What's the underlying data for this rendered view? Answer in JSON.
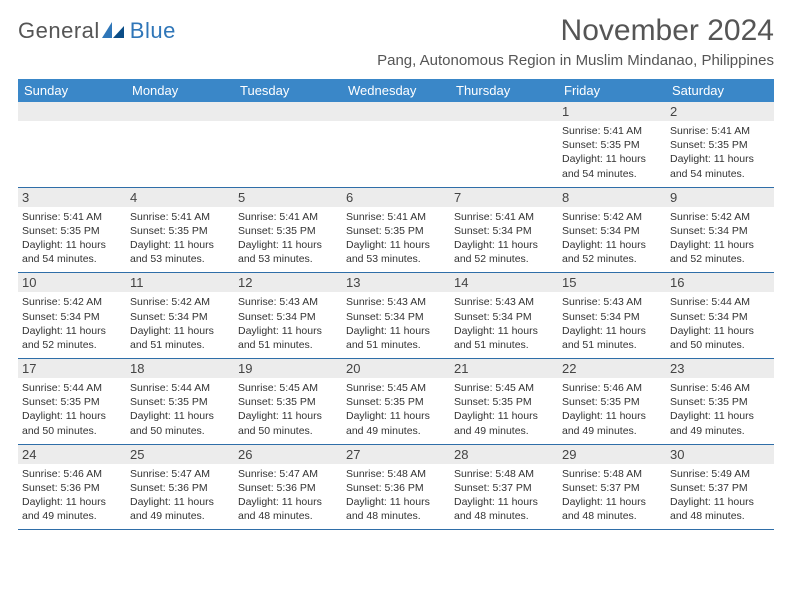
{
  "logo": {
    "text1": "General",
    "text2": "Blue"
  },
  "title": "November 2024",
  "location": "Pang, Autonomous Region in Muslim Mindanao, Philippines",
  "colors": {
    "header_bg": "#3a87c8",
    "header_text": "#ffffff",
    "daynum_bg": "#ececec",
    "border": "#2f6ea8",
    "text": "#333333",
    "title": "#555555"
  },
  "weekdays": [
    "Sunday",
    "Monday",
    "Tuesday",
    "Wednesday",
    "Thursday",
    "Friday",
    "Saturday"
  ],
  "weeks": [
    [
      {
        "n": "",
        "sr": "",
        "ss": "",
        "dl": ""
      },
      {
        "n": "",
        "sr": "",
        "ss": "",
        "dl": ""
      },
      {
        "n": "",
        "sr": "",
        "ss": "",
        "dl": ""
      },
      {
        "n": "",
        "sr": "",
        "ss": "",
        "dl": ""
      },
      {
        "n": "",
        "sr": "",
        "ss": "",
        "dl": ""
      },
      {
        "n": "1",
        "sr": "Sunrise: 5:41 AM",
        "ss": "Sunset: 5:35 PM",
        "dl": "Daylight: 11 hours and 54 minutes."
      },
      {
        "n": "2",
        "sr": "Sunrise: 5:41 AM",
        "ss": "Sunset: 5:35 PM",
        "dl": "Daylight: 11 hours and 54 minutes."
      }
    ],
    [
      {
        "n": "3",
        "sr": "Sunrise: 5:41 AM",
        "ss": "Sunset: 5:35 PM",
        "dl": "Daylight: 11 hours and 54 minutes."
      },
      {
        "n": "4",
        "sr": "Sunrise: 5:41 AM",
        "ss": "Sunset: 5:35 PM",
        "dl": "Daylight: 11 hours and 53 minutes."
      },
      {
        "n": "5",
        "sr": "Sunrise: 5:41 AM",
        "ss": "Sunset: 5:35 PM",
        "dl": "Daylight: 11 hours and 53 minutes."
      },
      {
        "n": "6",
        "sr": "Sunrise: 5:41 AM",
        "ss": "Sunset: 5:35 PM",
        "dl": "Daylight: 11 hours and 53 minutes."
      },
      {
        "n": "7",
        "sr": "Sunrise: 5:41 AM",
        "ss": "Sunset: 5:34 PM",
        "dl": "Daylight: 11 hours and 52 minutes."
      },
      {
        "n": "8",
        "sr": "Sunrise: 5:42 AM",
        "ss": "Sunset: 5:34 PM",
        "dl": "Daylight: 11 hours and 52 minutes."
      },
      {
        "n": "9",
        "sr": "Sunrise: 5:42 AM",
        "ss": "Sunset: 5:34 PM",
        "dl": "Daylight: 11 hours and 52 minutes."
      }
    ],
    [
      {
        "n": "10",
        "sr": "Sunrise: 5:42 AM",
        "ss": "Sunset: 5:34 PM",
        "dl": "Daylight: 11 hours and 52 minutes."
      },
      {
        "n": "11",
        "sr": "Sunrise: 5:42 AM",
        "ss": "Sunset: 5:34 PM",
        "dl": "Daylight: 11 hours and 51 minutes."
      },
      {
        "n": "12",
        "sr": "Sunrise: 5:43 AM",
        "ss": "Sunset: 5:34 PM",
        "dl": "Daylight: 11 hours and 51 minutes."
      },
      {
        "n": "13",
        "sr": "Sunrise: 5:43 AM",
        "ss": "Sunset: 5:34 PM",
        "dl": "Daylight: 11 hours and 51 minutes."
      },
      {
        "n": "14",
        "sr": "Sunrise: 5:43 AM",
        "ss": "Sunset: 5:34 PM",
        "dl": "Daylight: 11 hours and 51 minutes."
      },
      {
        "n": "15",
        "sr": "Sunrise: 5:43 AM",
        "ss": "Sunset: 5:34 PM",
        "dl": "Daylight: 11 hours and 51 minutes."
      },
      {
        "n": "16",
        "sr": "Sunrise: 5:44 AM",
        "ss": "Sunset: 5:34 PM",
        "dl": "Daylight: 11 hours and 50 minutes."
      }
    ],
    [
      {
        "n": "17",
        "sr": "Sunrise: 5:44 AM",
        "ss": "Sunset: 5:35 PM",
        "dl": "Daylight: 11 hours and 50 minutes."
      },
      {
        "n": "18",
        "sr": "Sunrise: 5:44 AM",
        "ss": "Sunset: 5:35 PM",
        "dl": "Daylight: 11 hours and 50 minutes."
      },
      {
        "n": "19",
        "sr": "Sunrise: 5:45 AM",
        "ss": "Sunset: 5:35 PM",
        "dl": "Daylight: 11 hours and 50 minutes."
      },
      {
        "n": "20",
        "sr": "Sunrise: 5:45 AM",
        "ss": "Sunset: 5:35 PM",
        "dl": "Daylight: 11 hours and 49 minutes."
      },
      {
        "n": "21",
        "sr": "Sunrise: 5:45 AM",
        "ss": "Sunset: 5:35 PM",
        "dl": "Daylight: 11 hours and 49 minutes."
      },
      {
        "n": "22",
        "sr": "Sunrise: 5:46 AM",
        "ss": "Sunset: 5:35 PM",
        "dl": "Daylight: 11 hours and 49 minutes."
      },
      {
        "n": "23",
        "sr": "Sunrise: 5:46 AM",
        "ss": "Sunset: 5:35 PM",
        "dl": "Daylight: 11 hours and 49 minutes."
      }
    ],
    [
      {
        "n": "24",
        "sr": "Sunrise: 5:46 AM",
        "ss": "Sunset: 5:36 PM",
        "dl": "Daylight: 11 hours and 49 minutes."
      },
      {
        "n": "25",
        "sr": "Sunrise: 5:47 AM",
        "ss": "Sunset: 5:36 PM",
        "dl": "Daylight: 11 hours and 49 minutes."
      },
      {
        "n": "26",
        "sr": "Sunrise: 5:47 AM",
        "ss": "Sunset: 5:36 PM",
        "dl": "Daylight: 11 hours and 48 minutes."
      },
      {
        "n": "27",
        "sr": "Sunrise: 5:48 AM",
        "ss": "Sunset: 5:36 PM",
        "dl": "Daylight: 11 hours and 48 minutes."
      },
      {
        "n": "28",
        "sr": "Sunrise: 5:48 AM",
        "ss": "Sunset: 5:37 PM",
        "dl": "Daylight: 11 hours and 48 minutes."
      },
      {
        "n": "29",
        "sr": "Sunrise: 5:48 AM",
        "ss": "Sunset: 5:37 PM",
        "dl": "Daylight: 11 hours and 48 minutes."
      },
      {
        "n": "30",
        "sr": "Sunrise: 5:49 AM",
        "ss": "Sunset: 5:37 PM",
        "dl": "Daylight: 11 hours and 48 minutes."
      }
    ]
  ]
}
